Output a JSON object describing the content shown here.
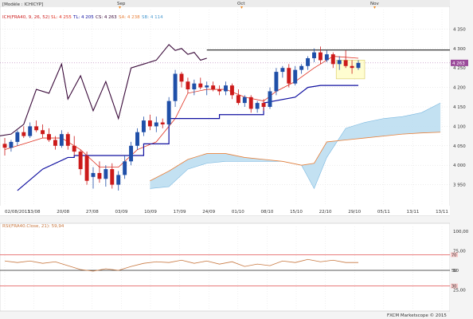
{
  "header": {
    "model": "[Modèle : ICHICYP]",
    "ind_name": "ICH(FRA40, 9, 26, 52)",
    "sl": "SL: 4 255",
    "tl": "TL: 4 205",
    "cs": "CS: 4 263",
    "sa": "SA: 4 238",
    "sb": "SB: 4 114",
    "month_labels": [
      "Sep",
      "Oct",
      "Nov"
    ]
  },
  "colors": {
    "bull": "#1f4fa8",
    "bear": "#cc1a1a",
    "tenkan": "#e03020",
    "kijun": "#1010a0",
    "chikou": "#3a0a3a",
    "senkou_a": "#e8803a",
    "kumo": "#b8dcf0",
    "rsi": "#c87840",
    "hline": "#000000"
  },
  "footer": {
    "copyright": "FXCM Marketscope © 2015"
  },
  "chart_data": [
    {
      "type": "candlestick",
      "title": "",
      "ylim": [
        3900,
        4400
      ],
      "y_ticks": [
        "4 350",
        "4 300",
        "4 250",
        "4 200",
        "4 150",
        "4 100",
        "4 050",
        "4 000",
        "3 950"
      ],
      "y_tick_values": [
        4350,
        4300,
        4250,
        4200,
        4150,
        4100,
        4050,
        4000,
        3950
      ],
      "x_ticks": [
        "02/08/2013",
        "13/08",
        "20/08",
        "27/08",
        "03/09",
        "10/09",
        "17/09",
        "24/09",
        "01/10",
        "08/10",
        "15/10",
        "22/10",
        "29/10",
        "05/11",
        "13/11",
        "13/11"
      ],
      "last_price_label": "4 263",
      "last_price": 4263,
      "horizontal_line": 4296,
      "candles": [
        {
          "o": 4055,
          "h": 4070,
          "l": 4025,
          "c": 4045
        },
        {
          "o": 4045,
          "h": 4065,
          "l": 4035,
          "c": 4060
        },
        {
          "o": 4060,
          "h": 4090,
          "l": 4050,
          "c": 4085
        },
        {
          "o": 4085,
          "h": 4100,
          "l": 4070,
          "c": 4075
        },
        {
          "o": 4075,
          "h": 4110,
          "l": 4070,
          "c": 4100
        },
        {
          "o": 4100,
          "h": 4115,
          "l": 4085,
          "c": 4090
        },
        {
          "o": 4090,
          "h": 4105,
          "l": 4070,
          "c": 4080
        },
        {
          "o": 4080,
          "h": 4095,
          "l": 4060,
          "c": 4065
        },
        {
          "o": 4065,
          "h": 4075,
          "l": 4040,
          "c": 4050
        },
        {
          "o": 4050,
          "h": 4090,
          "l": 4045,
          "c": 4080
        },
        {
          "o": 4080,
          "h": 4085,
          "l": 4040,
          "c": 4050
        },
        {
          "o": 4050,
          "h": 4075,
          "l": 4025,
          "c": 4035
        },
        {
          "o": 4035,
          "h": 4040,
          "l": 3975,
          "c": 3990
        },
        {
          "o": 4025,
          "h": 4035,
          "l": 3950,
          "c": 3960
        },
        {
          "o": 3970,
          "h": 3995,
          "l": 3940,
          "c": 3980
        },
        {
          "o": 3980,
          "h": 4010,
          "l": 3955,
          "c": 3965
        },
        {
          "o": 3965,
          "h": 4000,
          "l": 3945,
          "c": 3990
        },
        {
          "o": 3990,
          "h": 4005,
          "l": 3940,
          "c": 3950
        },
        {
          "o": 3950,
          "h": 3985,
          "l": 3935,
          "c": 3975
        },
        {
          "o": 3975,
          "h": 4025,
          "l": 3965,
          "c": 4010
        },
        {
          "o": 4010,
          "h": 4060,
          "l": 4000,
          "c": 4050
        },
        {
          "o": 4050,
          "h": 4095,
          "l": 4040,
          "c": 4085
        },
        {
          "o": 4085,
          "h": 4125,
          "l": 4075,
          "c": 4115
        },
        {
          "o": 4115,
          "h": 4130,
          "l": 4090,
          "c": 4100
        },
        {
          "o": 4100,
          "h": 4125,
          "l": 4085,
          "c": 4110
        },
        {
          "o": 4110,
          "h": 4120,
          "l": 4095,
          "c": 4105
        },
        {
          "o": 4105,
          "h": 4175,
          "l": 4100,
          "c": 4165
        },
        {
          "o": 4165,
          "h": 4245,
          "l": 4150,
          "c": 4235
        },
        {
          "o": 4235,
          "h": 4240,
          "l": 4200,
          "c": 4215
        },
        {
          "o": 4215,
          "h": 4225,
          "l": 4185,
          "c": 4195
        },
        {
          "o": 4195,
          "h": 4220,
          "l": 4180,
          "c": 4210
        },
        {
          "o": 4210,
          "h": 4225,
          "l": 4195,
          "c": 4200
        },
        {
          "o": 4200,
          "h": 4215,
          "l": 4180,
          "c": 4205
        },
        {
          "o": 4205,
          "h": 4215,
          "l": 4190,
          "c": 4195
        },
        {
          "o": 4195,
          "h": 4205,
          "l": 4180,
          "c": 4190
        },
        {
          "o": 4190,
          "h": 4215,
          "l": 4180,
          "c": 4205
        },
        {
          "o": 4205,
          "h": 4210,
          "l": 4170,
          "c": 4180
        },
        {
          "o": 4180,
          "h": 4195,
          "l": 4155,
          "c": 4160
        },
        {
          "o": 4160,
          "h": 4180,
          "l": 4150,
          "c": 4175
        },
        {
          "o": 4175,
          "h": 4180,
          "l": 4135,
          "c": 4145
        },
        {
          "o": 4145,
          "h": 4165,
          "l": 4135,
          "c": 4160
        },
        {
          "o": 4160,
          "h": 4170,
          "l": 4140,
          "c": 4150
        },
        {
          "o": 4150,
          "h": 4200,
          "l": 4145,
          "c": 4190
        },
        {
          "o": 4190,
          "h": 4250,
          "l": 4180,
          "c": 4240
        },
        {
          "o": 4240,
          "h": 4255,
          "l": 4225,
          "c": 4250
        },
        {
          "o": 4250,
          "h": 4260,
          "l": 4200,
          "c": 4210
        },
        {
          "o": 4210,
          "h": 4255,
          "l": 4205,
          "c": 4245
        },
        {
          "o": 4245,
          "h": 4260,
          "l": 4235,
          "c": 4255
        },
        {
          "o": 4255,
          "h": 4280,
          "l": 4245,
          "c": 4275
        },
        {
          "o": 4275,
          "h": 4300,
          "l": 4265,
          "c": 4290
        },
        {
          "o": 4290,
          "h": 4305,
          "l": 4260,
          "c": 4270
        },
        {
          "o": 4270,
          "h": 4295,
          "l": 4265,
          "c": 4285
        },
        {
          "o": 4285,
          "h": 4290,
          "l": 4250,
          "c": 4260
        },
        {
          "o": 4260,
          "h": 4280,
          "l": 4245,
          "c": 4270
        },
        {
          "o": 4270,
          "h": 4295,
          "l": 4250,
          "c": 4255
        },
        {
          "o": 4255,
          "h": 4270,
          "l": 4235,
          "c": 4250
        },
        {
          "o": 4250,
          "h": 4270,
          "l": 4245,
          "c": 4263
        }
      ],
      "tenkan": [
        {
          "i": 0,
          "v": 4040
        },
        {
          "i": 3,
          "v": 4055
        },
        {
          "i": 6,
          "v": 4070
        },
        {
          "i": 9,
          "v": 4070
        },
        {
          "i": 12,
          "v": 4040
        },
        {
          "i": 15,
          "v": 3995
        },
        {
          "i": 18,
          "v": 3995
        },
        {
          "i": 21,
          "v": 4040
        },
        {
          "i": 24,
          "v": 4060
        },
        {
          "i": 27,
          "v": 4120
        },
        {
          "i": 29,
          "v": 4185
        },
        {
          "i": 32,
          "v": 4195
        },
        {
          "i": 35,
          "v": 4195
        },
        {
          "i": 38,
          "v": 4175
        },
        {
          "i": 41,
          "v": 4165
        },
        {
          "i": 43,
          "v": 4190
        },
        {
          "i": 46,
          "v": 4215
        },
        {
          "i": 49,
          "v": 4250
        },
        {
          "i": 52,
          "v": 4280
        },
        {
          "i": 56,
          "v": 4275
        }
      ],
      "kijun": [
        {
          "i": 2,
          "v": 3935
        },
        {
          "i": 6,
          "v": 3990
        },
        {
          "i": 10,
          "v": 4020
        },
        {
          "i": 11,
          "v": 4020
        },
        {
          "i": 11,
          "v": 4025
        },
        {
          "i": 22,
          "v": 4025
        },
        {
          "i": 22,
          "v": 4055
        },
        {
          "i": 26,
          "v": 4055
        },
        {
          "i": 26,
          "v": 4120
        },
        {
          "i": 34,
          "v": 4120
        },
        {
          "i": 34,
          "v": 4130
        },
        {
          "i": 41,
          "v": 4130
        },
        {
          "i": 41,
          "v": 4160
        },
        {
          "i": 46,
          "v": 4175
        },
        {
          "i": 48,
          "v": 4200
        },
        {
          "i": 50,
          "v": 4205
        },
        {
          "i": 56,
          "v": 4205
        }
      ],
      "chikou": [
        {
          "i": -1,
          "v": 4075
        },
        {
          "i": 1,
          "v": 4080
        },
        {
          "i": 3,
          "v": 4105
        },
        {
          "i": 5,
          "v": 4195
        },
        {
          "i": 7,
          "v": 4185
        },
        {
          "i": 9,
          "v": 4260
        },
        {
          "i": 10,
          "v": 4170
        },
        {
          "i": 12,
          "v": 4230
        },
        {
          "i": 14,
          "v": 4140
        },
        {
          "i": 16,
          "v": 4215
        },
        {
          "i": 18,
          "v": 4120
        },
        {
          "i": 20,
          "v": 4250
        },
        {
          "i": 22,
          "v": 4260
        },
        {
          "i": 24,
          "v": 4270
        },
        {
          "i": 26,
          "v": 4310
        },
        {
          "i": 27,
          "v": 4295
        },
        {
          "i": 28,
          "v": 4300
        },
        {
          "i": 29,
          "v": 4285
        },
        {
          "i": 30,
          "v": 4290
        },
        {
          "i": 31,
          "v": 4270
        },
        {
          "i": 32,
          "v": 4275
        }
      ],
      "senkou_a": [
        {
          "i": 23,
          "v": 3960
        },
        {
          "i": 26,
          "v": 3985
        },
        {
          "i": 29,
          "v": 4015
        },
        {
          "i": 32,
          "v": 4030
        },
        {
          "i": 35,
          "v": 4030
        },
        {
          "i": 38,
          "v": 4020
        },
        {
          "i": 41,
          "v": 4015
        },
        {
          "i": 44,
          "v": 4010
        },
        {
          "i": 47,
          "v": 4000
        },
        {
          "i": 49,
          "v": 4005
        },
        {
          "i": 51,
          "v": 4060
        },
        {
          "i": 54,
          "v": 4065
        },
        {
          "i": 57,
          "v": 4070
        },
        {
          "i": 60,
          "v": 4075
        },
        {
          "i": 63,
          "v": 4080
        },
        {
          "i": 66,
          "v": 4083
        },
        {
          "i": 69,
          "v": 4085
        }
      ],
      "senkou_b": [
        {
          "i": 23,
          "v": 3940
        },
        {
          "i": 26,
          "v": 3945
        },
        {
          "i": 29,
          "v": 3990
        },
        {
          "i": 32,
          "v": 4005
        },
        {
          "i": 35,
          "v": 4010
        },
        {
          "i": 38,
          "v": 4010
        },
        {
          "i": 41,
          "v": 4010
        },
        {
          "i": 44,
          "v": 4010
        },
        {
          "i": 47,
          "v": 4000
        },
        {
          "i": 49,
          "v": 3940
        },
        {
          "i": 51,
          "v": 4020
        },
        {
          "i": 54,
          "v": 4095
        },
        {
          "i": 57,
          "v": 4110
        },
        {
          "i": 60,
          "v": 4120
        },
        {
          "i": 63,
          "v": 4125
        },
        {
          "i": 66,
          "v": 4135
        },
        {
          "i": 69,
          "v": 4160
        }
      ]
    },
    {
      "type": "line",
      "title": "RSI(FRA40.Close, 21): 59,94",
      "ylim": [
        0,
        100
      ],
      "y_ticks": [
        "100,00",
        "75,00",
        "50",
        "25,00"
      ],
      "y_tick_values": [
        100,
        75,
        50,
        25
      ],
      "levels": [
        {
          "label": "70",
          "value": 70
        },
        {
          "label": "50",
          "value": 50
        },
        {
          "label": "30",
          "value": 30
        }
      ],
      "values": [
        {
          "i": 0,
          "v": 62
        },
        {
          "i": 2,
          "v": 60
        },
        {
          "i": 4,
          "v": 62
        },
        {
          "i": 6,
          "v": 59
        },
        {
          "i": 8,
          "v": 61
        },
        {
          "i": 10,
          "v": 56
        },
        {
          "i": 12,
          "v": 51
        },
        {
          "i": 14,
          "v": 49
        },
        {
          "i": 16,
          "v": 52
        },
        {
          "i": 18,
          "v": 50
        },
        {
          "i": 20,
          "v": 55
        },
        {
          "i": 22,
          "v": 59
        },
        {
          "i": 24,
          "v": 61
        },
        {
          "i": 26,
          "v": 60
        },
        {
          "i": 28,
          "v": 63
        },
        {
          "i": 30,
          "v": 59
        },
        {
          "i": 32,
          "v": 62
        },
        {
          "i": 34,
          "v": 58
        },
        {
          "i": 36,
          "v": 61
        },
        {
          "i": 38,
          "v": 55
        },
        {
          "i": 40,
          "v": 58
        },
        {
          "i": 42,
          "v": 56
        },
        {
          "i": 44,
          "v": 62
        },
        {
          "i": 46,
          "v": 60
        },
        {
          "i": 48,
          "v": 64
        },
        {
          "i": 50,
          "v": 61
        },
        {
          "i": 52,
          "v": 63
        },
        {
          "i": 54,
          "v": 60
        },
        {
          "i": 56,
          "v": 60
        }
      ]
    }
  ]
}
